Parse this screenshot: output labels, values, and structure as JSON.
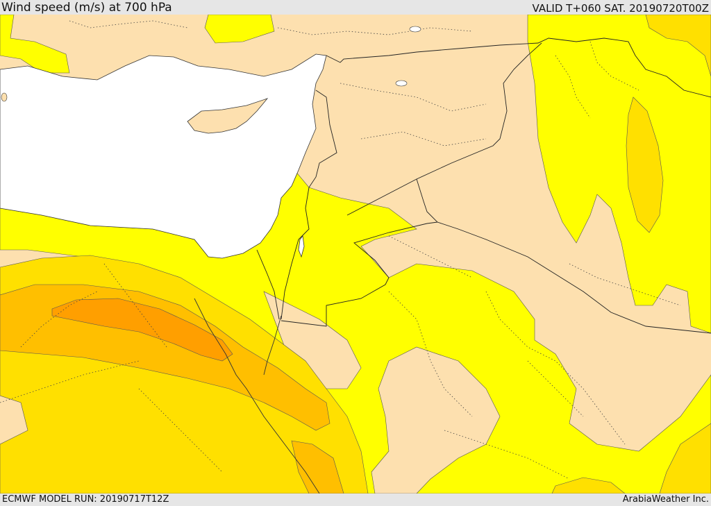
{
  "header": {
    "title": "Wind speed (m/s) at 700 hPa",
    "valid_time": "VALID T+060 SAT. 20190720T00Z"
  },
  "footer": {
    "model_run": "ECMWF MODEL RUN: 20190717T12Z",
    "credit": "ArabiaWeather Inc."
  },
  "map": {
    "region": "Eastern Mediterranean / Levant / Iraq",
    "colors": {
      "land": "#fde0af",
      "sea": "#ffffff",
      "wind_band_1": "#ffff00",
      "wind_band_2": "#ffe000",
      "wind_band_3": "#ffbf00",
      "wind_band_4": "#ff9f00",
      "borders": "#222222"
    }
  }
}
